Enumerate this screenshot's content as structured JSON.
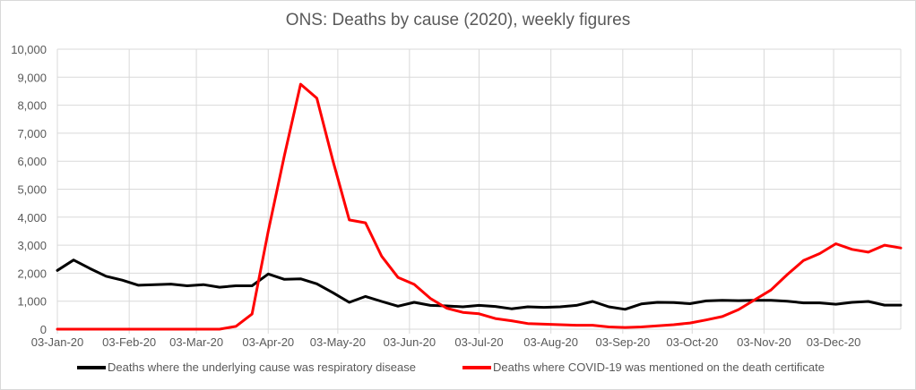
{
  "chart_data": {
    "type": "line",
    "title": "ONS: Deaths by cause (2020), weekly figures",
    "xlabel": "",
    "ylabel": "",
    "ylim": [
      0,
      10000
    ],
    "yticks": [
      "0",
      "1,000",
      "2,000",
      "3,000",
      "4,000",
      "5,000",
      "6,000",
      "7,000",
      "8,000",
      "9,000",
      "10,000"
    ],
    "xticks": [
      "03-Jan-20",
      "03-Feb-20",
      "03-Mar-20",
      "03-Apr-20",
      "03-May-20",
      "03-Jun-20",
      "03-Jul-20",
      "03-Aug-20",
      "03-Sep-20",
      "03-Oct-20",
      "03-Nov-20",
      "03-Dec-20"
    ],
    "xtick_week_offsets": [
      0,
      4.43,
      8.57,
      13,
      17.29,
      21.71,
      26,
      30.43,
      34.86,
      39.14,
      43.57,
      47.86
    ],
    "grid": true,
    "legend_position": "bottom",
    "series": [
      {
        "name": "Deaths where the underlying cause was respiratory disease",
        "color": "#000000",
        "values": [
          2100,
          2470,
          2170,
          1890,
          1750,
          1570,
          1590,
          1610,
          1550,
          1590,
          1500,
          1550,
          1550,
          1970,
          1780,
          1800,
          1620,
          1300,
          960,
          1170,
          990,
          820,
          960,
          850,
          830,
          800,
          850,
          810,
          730,
          800,
          780,
          800,
          850,
          990,
          800,
          710,
          900,
          960,
          950,
          910,
          1010,
          1030,
          1020,
          1030,
          1030,
          1000,
          940,
          940,
          890,
          960,
          990,
          860,
          860
        ]
      },
      {
        "name": "Deaths where COVID-19 was mentioned on the death certificate",
        "color": "#ff0000",
        "values": [
          0,
          0,
          0,
          0,
          0,
          0,
          0,
          0,
          0,
          0,
          0,
          100,
          540,
          3500,
          6200,
          8750,
          8250,
          6000,
          3900,
          3800,
          2600,
          1850,
          1600,
          1100,
          750,
          600,
          550,
          380,
          300,
          200,
          180,
          160,
          140,
          140,
          80,
          60,
          80,
          120,
          160,
          220,
          330,
          450,
          700,
          1050,
          1400,
          1950,
          2450,
          2700,
          3050,
          2850,
          2750,
          3000,
          2900
        ]
      }
    ]
  }
}
